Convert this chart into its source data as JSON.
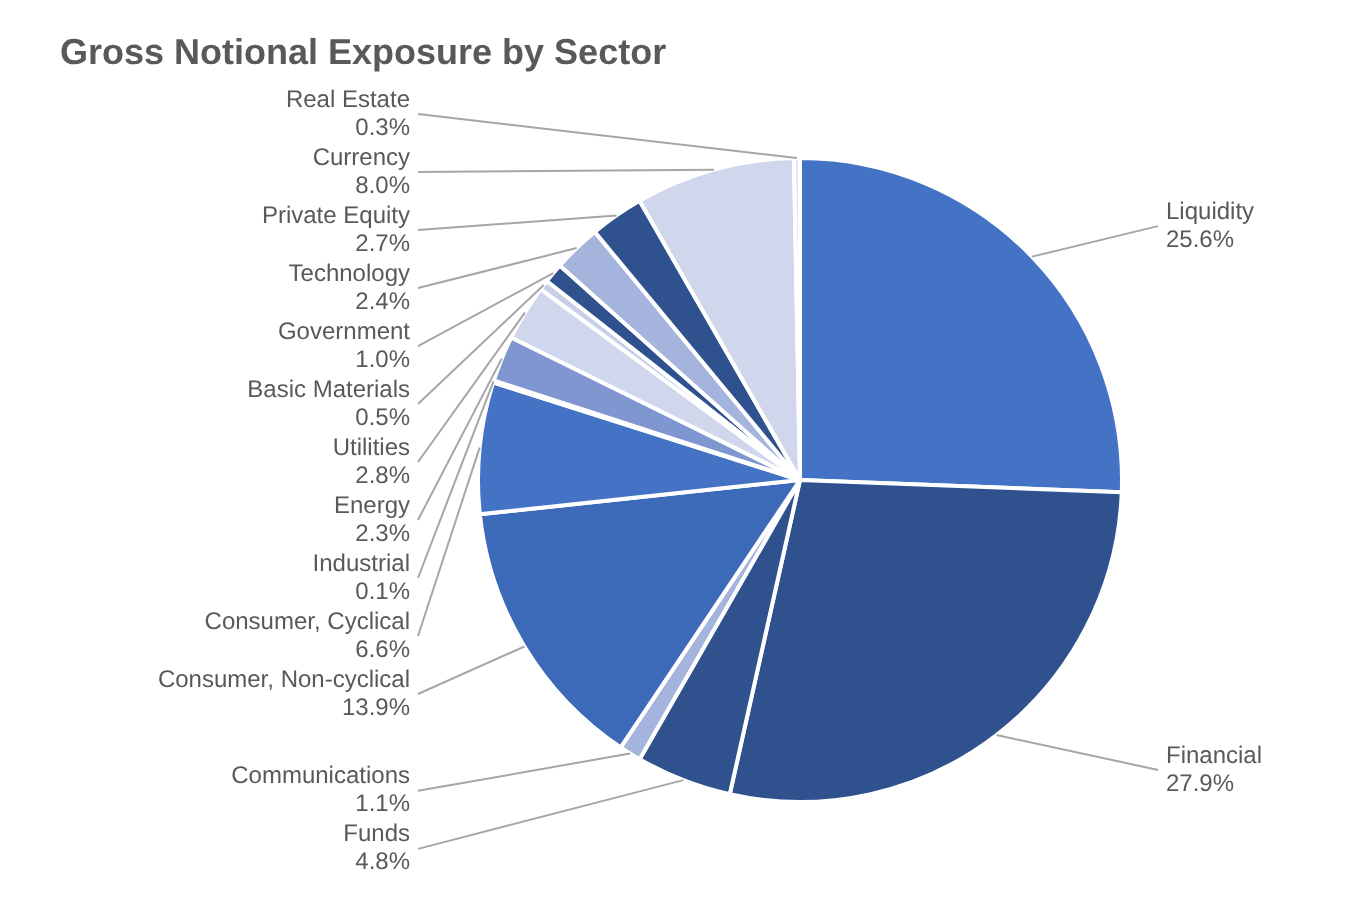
{
  "chart_data": {
    "type": "pie",
    "title": "Gross Notional Exposure by Sector",
    "categories": [
      "Liquidity",
      "Financial",
      "Funds",
      "Communications",
      "Consumer, Non-cyclical",
      "Consumer, Cyclical",
      "Industrial",
      "Energy",
      "Utilities",
      "Basic Materials",
      "Government",
      "Technology",
      "Private Equity",
      "Currency",
      "Real Estate"
    ],
    "values": [
      25.6,
      27.9,
      4.8,
      1.1,
      13.9,
      6.6,
      0.1,
      2.3,
      2.8,
      0.5,
      1.0,
      2.4,
      2.7,
      8.0,
      0.3
    ],
    "colors": [
      "#4472c4",
      "#2f528f",
      "#2f528f",
      "#a5b4dc",
      "#3c6ab8",
      "#4472c4",
      "#3a5fa0",
      "#7f96d0",
      "#d0d6eb",
      "#c7cfe8",
      "#2f528f",
      "#a5b4dc",
      "#2f528f",
      "#d0d6eb",
      "#e0e4f2"
    ],
    "value_labels": [
      "25.6%",
      "27.9%",
      "4.8%",
      "1.1%",
      "13.9%",
      "6.6%",
      "0.1%",
      "2.3%",
      "2.8%",
      "0.5%",
      "1.0%",
      "2.4%",
      "2.7%",
      "8.0%",
      "0.3%"
    ],
    "legend": false
  }
}
